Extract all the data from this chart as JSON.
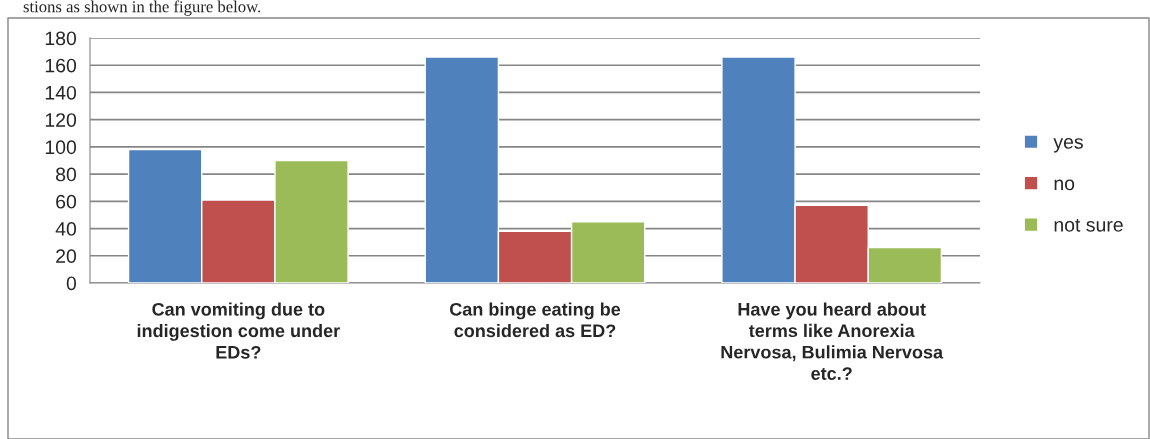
{
  "chart_data": {
    "type": "bar",
    "categories": [
      "Can vomiting due to\nindigestion come under\nEDs?",
      "Can binge eating be\nconsidered as ED?",
      "Have you heard about\nterms like Anorexia\nNervosa, Bulimia Nervosa\netc.?"
    ],
    "series": [
      {
        "name": "yes",
        "color": "#4f81bd",
        "values": [
          98,
          166,
          166
        ]
      },
      {
        "name": "no",
        "color": "#c0504d",
        "values": [
          61,
          38,
          57
        ]
      },
      {
        "name": "not sure",
        "color": "#9bbb59",
        "values": [
          90,
          45,
          26
        ]
      }
    ],
    "ylim": [
      0,
      180
    ],
    "yticks": [
      0,
      20,
      40,
      60,
      80,
      100,
      120,
      140,
      160,
      180
    ],
    "grid": "y",
    "legend": "right",
    "annotations": [
      "stions as shown in the figure below."
    ]
  }
}
